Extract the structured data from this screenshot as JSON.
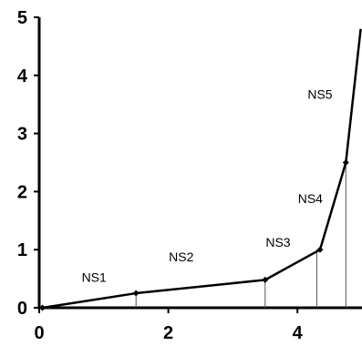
{
  "chart_data": {
    "type": "line",
    "title": "",
    "xlabel": "",
    "ylabel": "",
    "xlim": [
      0,
      5
    ],
    "ylim": [
      0,
      5
    ],
    "x_ticks": [
      0,
      2,
      4
    ],
    "y_ticks": [
      0,
      1,
      2,
      3,
      4,
      5
    ],
    "x_tick_labels": [
      "0",
      "2",
      "4"
    ],
    "y_tick_labels": [
      "0",
      "1",
      "2",
      "3",
      "4",
      "5"
    ],
    "grid": false,
    "legend": "none",
    "series": [
      {
        "x": [
          0.05,
          1.5,
          3.5,
          4.35,
          4.75,
          4.98
        ],
        "y": [
          0,
          0.25,
          0.48,
          1.0,
          2.5,
          4.8
        ],
        "markers_at": [
          0,
          1,
          2,
          3,
          4
        ],
        "color": "#000000"
      }
    ],
    "vertical_lines": [
      {
        "x": 1.5,
        "from": 0,
        "to": 0.25
      },
      {
        "x": 3.5,
        "from": 0,
        "to": 0.48
      },
      {
        "x": 4.3,
        "from": 0,
        "to": 1.0
      },
      {
        "x": 4.75,
        "from": 0,
        "to": 2.5
      }
    ],
    "annotations": [
      {
        "text": "NS1",
        "x": 0.85,
        "y": 0.45
      },
      {
        "text": "NS2",
        "x": 2.2,
        "y": 0.8
      },
      {
        "text": "NS3",
        "x": 3.7,
        "y": 1.05
      },
      {
        "text": "NS4",
        "x": 4.2,
        "y": 1.8
      },
      {
        "text": "NS5",
        "x": 4.35,
        "y": 3.6
      }
    ]
  }
}
